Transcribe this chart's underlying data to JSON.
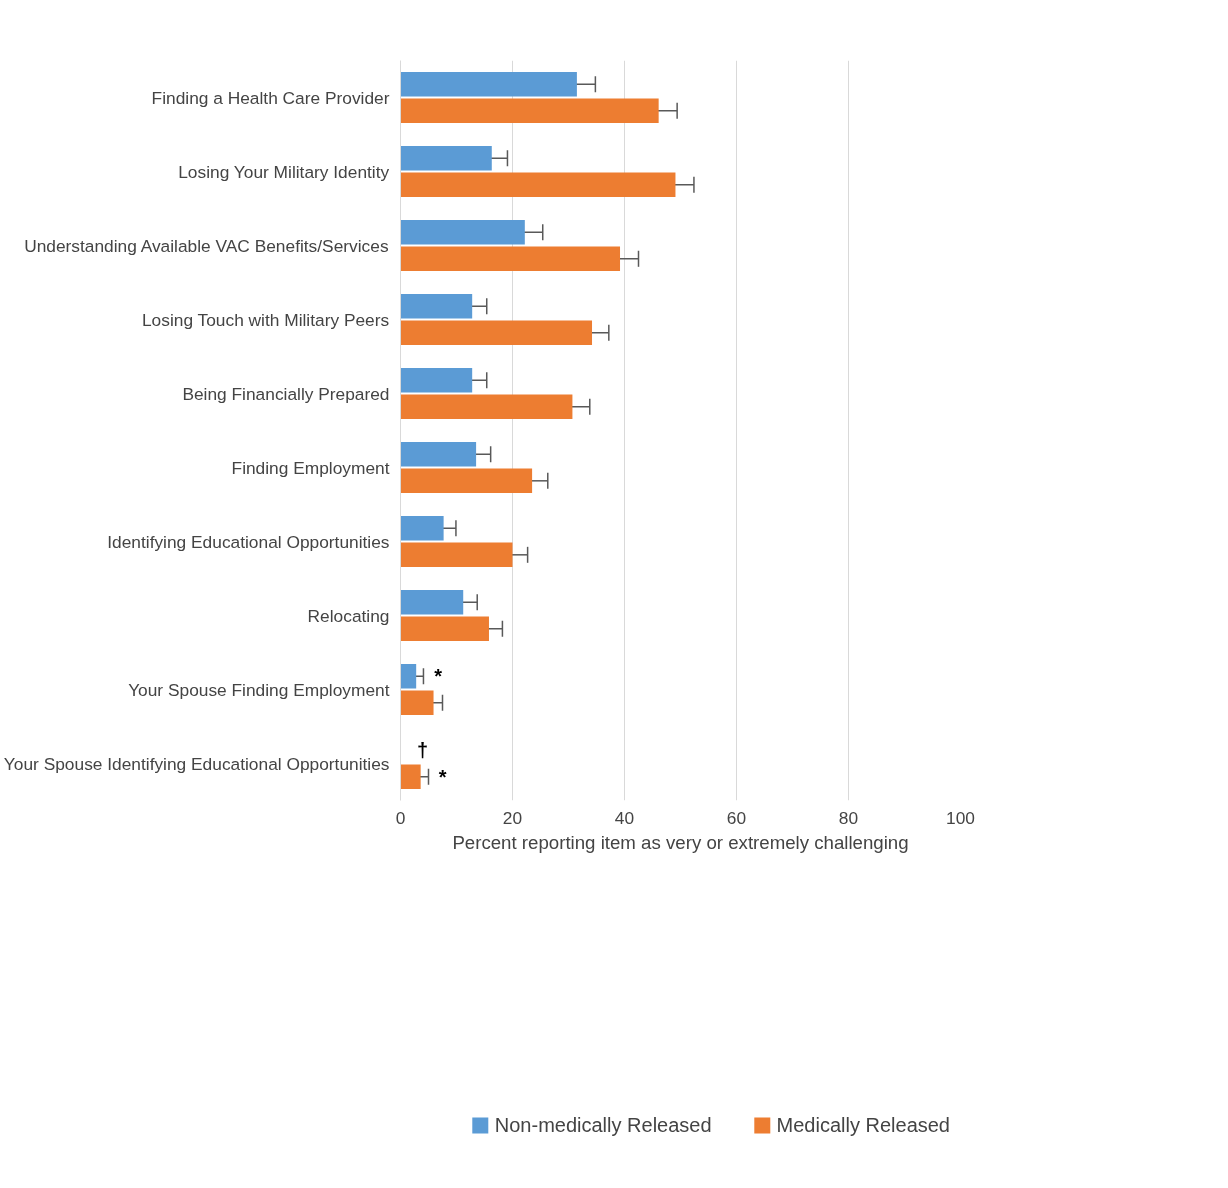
{
  "chart_data": {
    "type": "bar",
    "orientation": "horizontal",
    "categories": [
      "Finding a Health Care Provider",
      "Losing Your Military Identity",
      "Understanding Available VAC Benefits/Services",
      "Losing Touch with Military Peers",
      "Being Financially Prepared",
      "Finding Employment",
      "Identifying Educational Opportunities",
      "Relocating",
      "Your Spouse Finding Employment",
      "Your Spouse Identifying Educational Opportunities"
    ],
    "series": [
      {
        "name": "Non-medically Released",
        "color": "#5b9bd5",
        "values": [
          31.5,
          16.3,
          22.2,
          12.8,
          12.8,
          13.5,
          7.7,
          11.2,
          2.8,
          null
        ],
        "errors": [
          3.3,
          2.8,
          3.2,
          2.6,
          2.6,
          2.6,
          2.2,
          2.5,
          1.3,
          null
        ]
      },
      {
        "name": "Medically Released",
        "color": "#ed7d31",
        "values": [
          46.1,
          49.1,
          39.2,
          34.2,
          30.7,
          23.5,
          20.0,
          15.8,
          5.9,
          3.6
        ],
        "errors": [
          3.3,
          3.3,
          3.3,
          3.0,
          3.1,
          2.8,
          2.7,
          2.4,
          1.6,
          1.4
        ]
      }
    ],
    "xlim": [
      0,
      100
    ],
    "xticks": [
      0,
      20,
      40,
      60,
      80,
      100
    ],
    "xlabel": "Percent reporting item as very or extremely challenging",
    "grid": "x",
    "legend": "bottom",
    "annotations": [
      {
        "text": "*",
        "x": 2.8,
        "y": "Your Spouse Finding Employment"
      },
      {
        "text": "†",
        "x": 0,
        "y": "Your Spouse Identifying Educational Opportunities"
      },
      {
        "text": "*",
        "x": 3.6,
        "y": "Your Spouse Identifying Educational Opportunities"
      }
    ]
  }
}
